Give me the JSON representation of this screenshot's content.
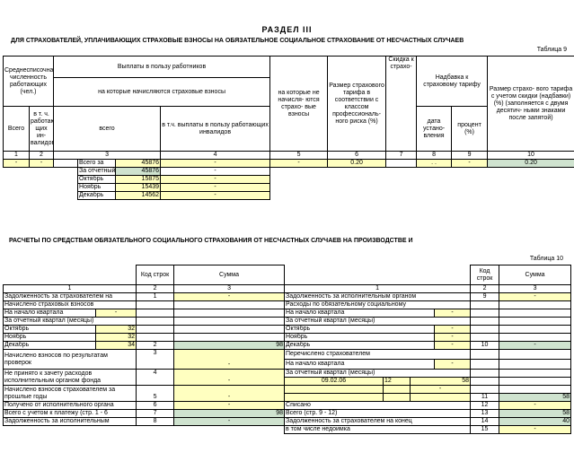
{
  "section_title": "РАЗДЕЛ III",
  "subtitle": "ДЛЯ СТРАХОВАТЕЛЕЙ, УПЛАЧИВАЮЩИХ СТРАХОВЫЕ ВЗНОСЫ НА ОБЯЗАТЕЛЬНОЕ СОЦИАЛЬНОЕ СТРАХОВАНИЕ ОТ НЕСЧАСТНЫХ СЛУЧАЕВ",
  "table9": {
    "label": "Таблица 9",
    "headers": {
      "avg_count": "Среднесписочная численность работающих (чел.)",
      "total": "Всего",
      "incl_disabled": "в т. ч. работаю щих ин- валидов",
      "payments": "Выплаты в пользу работников",
      "charged": "на которые начисляются страховые взносы",
      "not_charged": "на которые не начисля- ются страхо- вые взносы",
      "all": "всего",
      "incl_disabled_pay": "в т.ч. выплаты в пользу работающих инвалидов",
      "rate": "Размер страхового тарифа в соответствии с классом профессиональ- ного риска (%)",
      "discount": "Скидка к страхо-",
      "surcharge": "Надбавка к страховому тарифу",
      "date_set": "дата устано- вления",
      "percent": "процент (%)",
      "rate_adj": "Размер страхо- вого тарифа с учетом скидки (надбавки) (%) (заполняется с двумя десятич- ными знаками после запятой)",
      "nums": [
        "1",
        "2",
        "3",
        "4",
        "5",
        "6",
        "7",
        "8",
        "9",
        "10"
      ]
    },
    "rows": [
      {
        "c1": "-",
        "c2": "-",
        "label": "Всего за",
        "v3": "45876",
        "v4": "-",
        "v5": "-",
        "v6": "0.20",
        "v8": "  .  .  ",
        "v9": "-",
        "v10": "0.20"
      },
      {
        "label": "За отчетный",
        "v3": "45876",
        "v4": "-"
      },
      {
        "label": "Октябрь",
        "v3": "15875",
        "v4": "-"
      },
      {
        "label": "Ноябрь",
        "v3": "15439",
        "v4": "-"
      },
      {
        "label": "Декабрь",
        "v3": "14562",
        "v4": "-"
      }
    ]
  },
  "section2_title": "РАСЧЕТЫ ПО СРЕДСТВАМ ОБЯЗАТЕЛЬНОГО СОЦИАЛЬНОГО СТРАХОВАНИЯ ОТ НЕСЧАСТНЫХ СЛУЧАЕВ НА ПРОИЗВОДСТВЕ И",
  "table10": {
    "label": "Таблица 10",
    "h_code": "Код строк",
    "h_sum": "Сумма",
    "n1": "1",
    "n2": "2",
    "n3": "3",
    "left": [
      {
        "text": "Задолженность за страхователем на",
        "code": "1",
        "sum": "-"
      },
      {
        "text": "Начислено страховых взносов",
        "code": "",
        "sum": ""
      },
      {
        "text": "На начало квартала",
        "extra": "-",
        "code": "",
        "sum": ""
      },
      {
        "text": "За отчетный квартал (месяцы)",
        "code": "",
        "sum": ""
      },
      {
        "text": "Октябрь",
        "extra": "32",
        "code": "",
        "sum": ""
      },
      {
        "text": "Ноябрь",
        "extra": "32",
        "code": "",
        "sum": ""
      },
      {
        "text": "Декабрь",
        "extra": "34",
        "code": "2",
        "sum": "98"
      },
      {
        "text": "Начислено взносов по результатам проверок",
        "code": "3",
        "sum": "-"
      },
      {
        "text": "Не принято к зачету расходов исполнительным органом фонда",
        "code": "4",
        "sum": "-"
      },
      {
        "text": "Начислено взносов страхователем за прошлые годы",
        "code": "5",
        "sum": "-"
      },
      {
        "text": "Получено от исполнительного органа",
        "code": "6",
        "sum": "-"
      },
      {
        "text": "Всего с учетом к платежу (стр. 1 - 6",
        "code": "7",
        "sum": "98"
      },
      {
        "text": "Задолженность за исполнительным",
        "code": "8",
        "sum": "-"
      }
    ],
    "right": [
      {
        "text": "Задолженность за исполнительным органом",
        "code": "9",
        "sum": "-"
      },
      {
        "text": "Расходы по обязательному социальному",
        "code": "",
        "sum": ""
      },
      {
        "text": "На начало квартала",
        "extra": "-",
        "code": "",
        "sum": ""
      },
      {
        "text": "За отчетный квартал (месяцы)",
        "code": "",
        "sum": ""
      },
      {
        "text": "Октябрь",
        "extra": "-",
        "code": "",
        "sum": ""
      },
      {
        "text": "Ноябрь",
        "extra": "-",
        "code": "",
        "sum": ""
      },
      {
        "text": "Декабрь",
        "extra": "-",
        "code": "10",
        "sum": "-"
      },
      {
        "text": "Перечислено страхователем",
        "code": "",
        "sum": ""
      },
      {
        "text": "На начало квартала",
        "extra": "-",
        "code": "",
        "sum": ""
      },
      {
        "text": "За отчетный квартал (месяцы)",
        "code": "",
        "sum": ""
      },
      {
        "date": "09.02.06",
        "num": "12",
        "amt": "58",
        "code": "",
        "sum": ""
      },
      {
        "text": "",
        "extra": "-",
        "code": "",
        "sum": ""
      },
      {
        "text": "",
        "code": "11",
        "sum": "58"
      },
      {
        "text": "Списано",
        "code": "12",
        "sum": "-"
      },
      {
        "text": "Всего (стр. 9 - 12)",
        "code": "13",
        "sum": "58"
      },
      {
        "text": "Задолженность за страхователем на конец",
        "code": "14",
        "sum": "40"
      },
      {
        "text": "в том числе недоимка",
        "code": "15",
        "sum": "-"
      }
    ]
  }
}
